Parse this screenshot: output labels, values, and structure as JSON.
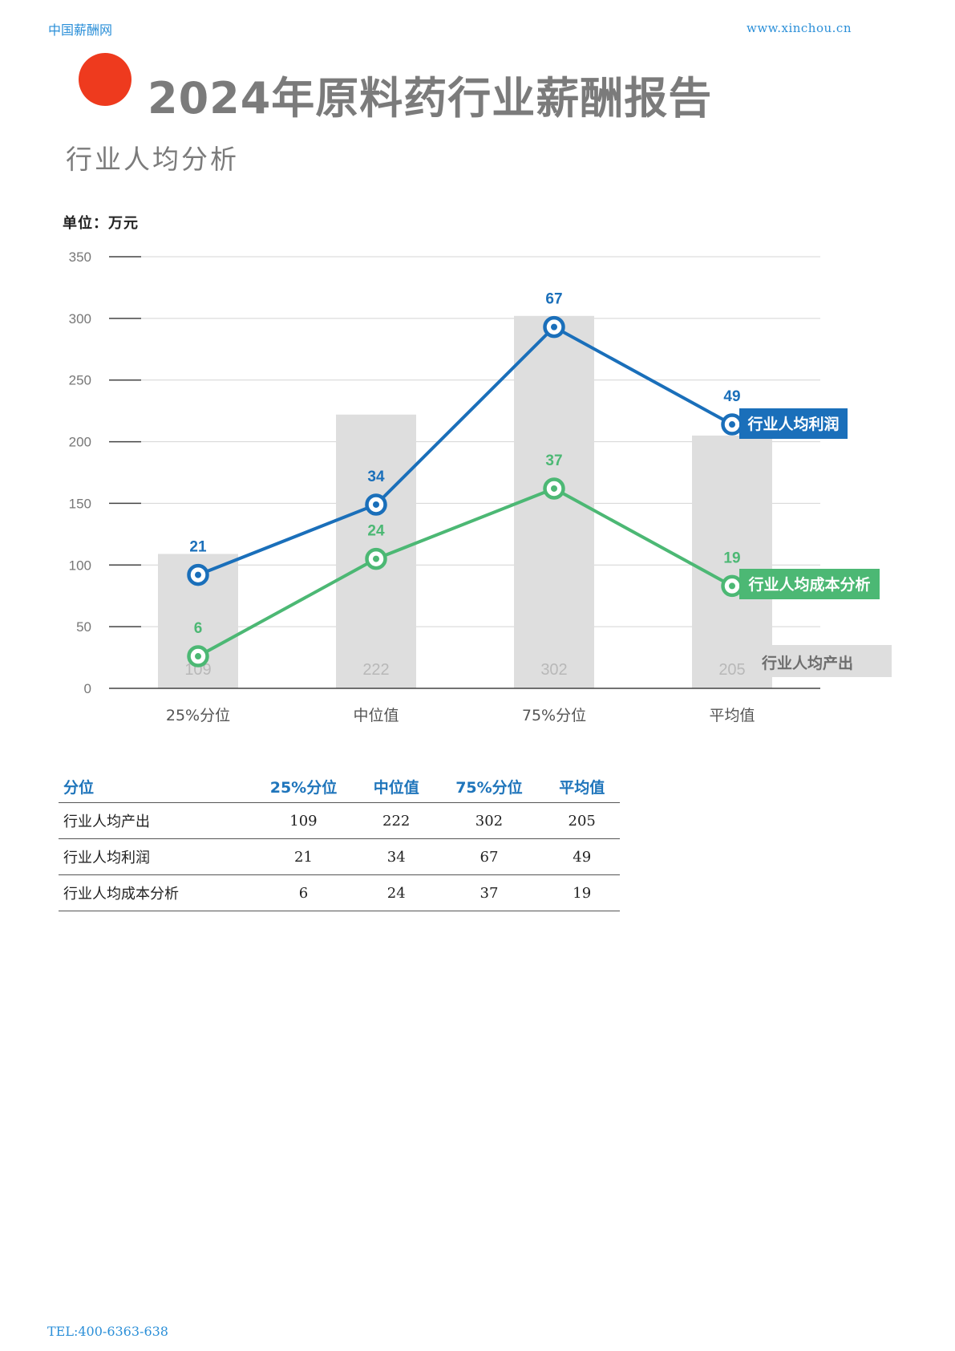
{
  "header": {
    "site": "中国薪酬网",
    "url": "www.xinchou.cn"
  },
  "title": "2024年原料药行业薪酬报告",
  "subtitle": "行业人均分析",
  "unit": "单位：万元",
  "colors": {
    "bar": "#dedede",
    "profit": "#1a6fba",
    "cost": "#4cb874",
    "accent": "#ee3a1e"
  },
  "chart_data": {
    "type": "bar",
    "categories": [
      "25%分位",
      "中位值",
      "75%分位",
      "平均值"
    ],
    "ylim": [
      0,
      350
    ],
    "yticks": [
      0,
      50,
      100,
      150,
      200,
      250,
      300,
      350
    ],
    "grid": true,
    "series": [
      {
        "name": "行业人均产出",
        "type": "bar",
        "values": [
          109,
          222,
          302,
          205
        ]
      },
      {
        "name": "行业人均利润",
        "type": "line",
        "values": [
          21,
          34,
          67,
          49
        ]
      },
      {
        "name": "行业人均成本分析",
        "type": "line",
        "values": [
          6,
          24,
          37,
          19
        ]
      }
    ]
  },
  "table": {
    "headers": [
      "分位",
      "25%分位",
      "中位值",
      "75%分位",
      "平均值"
    ],
    "rows": [
      [
        "行业人均产出",
        "109",
        "222",
        "302",
        "205"
      ],
      [
        "行业人均利润",
        "21",
        "34",
        "67",
        "49"
      ],
      [
        "行业人均成本分析",
        "6",
        "24",
        "37",
        "19"
      ]
    ]
  },
  "footer": {
    "tel": "TEL:400-6363-638"
  }
}
